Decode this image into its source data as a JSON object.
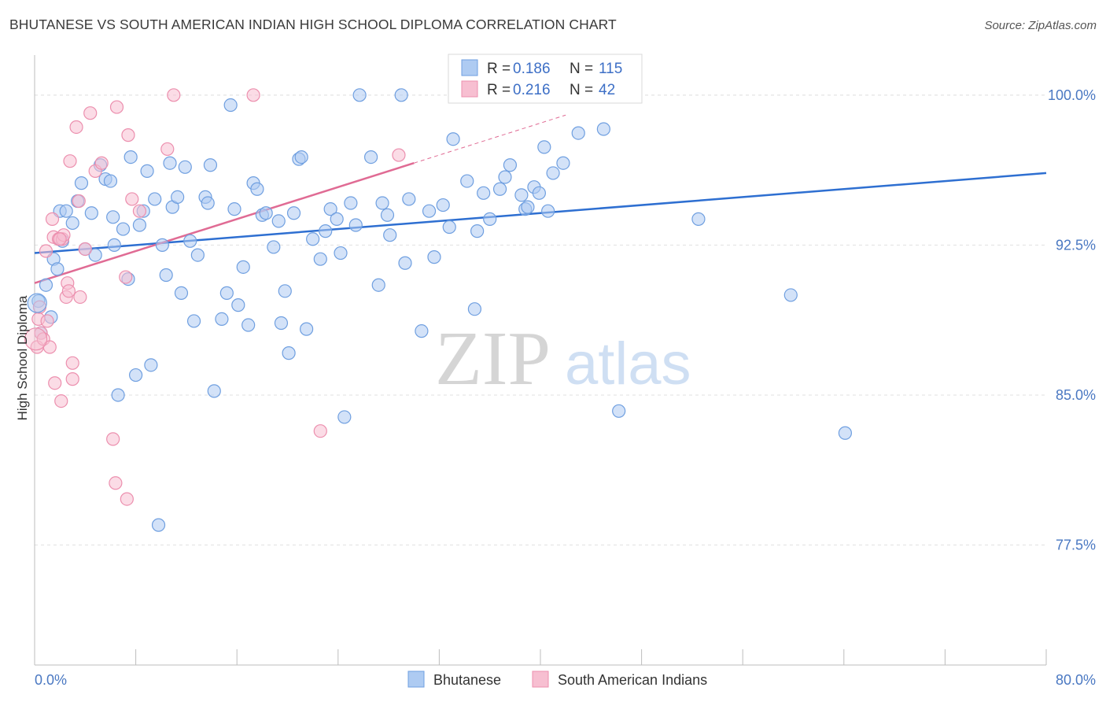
{
  "title": "BHUTANESE VS SOUTH AMERICAN INDIAN HIGH SCHOOL DIPLOMA CORRELATION CHART",
  "source": "Source: ZipAtlas.com",
  "watermark": {
    "zip": "ZIP",
    "atlas": "atlas"
  },
  "colors": {
    "blue": "#6f9fe0",
    "blue_line": "#2e6fd1",
    "blue_fill": "#aecbf2",
    "pink": "#ec8fae",
    "pink_line": "#e06b94",
    "pink_fill": "#f7bfd1",
    "axis_text": "#4a78c2",
    "grid": "#e1e1e1"
  },
  "legend": {
    "rows": [
      {
        "r_label": "R = ",
        "r_value": "0.186",
        "n_label": "N = ",
        "n_value": "115",
        "series": "blue"
      },
      {
        "r_label": "R = ",
        "r_value": "0.216",
        "n_label": "N = ",
        "n_value": "42",
        "series": "pink"
      }
    ]
  },
  "bottom_legend": [
    "Bhutanese",
    "South American Indians"
  ],
  "chart_data": {
    "type": "scatter",
    "title": "BHUTANESE VS SOUTH AMERICAN INDIAN HIGH SCHOOL DIPLOMA CORRELATION CHART",
    "ylabel": "High School Diploma",
    "xlabel": "",
    "xlim": [
      0,
      80
    ],
    "ylim": [
      71.5,
      102
    ],
    "x_tick_labels": [
      "0.0%",
      "80.0%"
    ],
    "y_ticks": [
      77.5,
      85.0,
      92.5,
      100.0
    ],
    "y_tick_labels": [
      "77.5%",
      "85.0%",
      "92.5%",
      "100.0%"
    ],
    "grid": true,
    "legend_position": "top-center",
    "series": [
      {
        "name": "Bhutanese",
        "color": "#6f9fe0",
        "r": 0.186,
        "n": 115,
        "trend": {
          "x": [
            0,
            80
          ],
          "y": [
            92.1,
            96.1
          ]
        },
        "points": [
          [
            0.3,
            89.7
          ],
          [
            0.5,
            88.1
          ],
          [
            0.9,
            90.5
          ],
          [
            1.3,
            88.9
          ],
          [
            1.5,
            91.8
          ],
          [
            1.8,
            91.3
          ],
          [
            2.0,
            94.2
          ],
          [
            2.2,
            92.7
          ],
          [
            2.5,
            94.2
          ],
          [
            3.0,
            93.6
          ],
          [
            3.4,
            94.7
          ],
          [
            3.7,
            95.6
          ],
          [
            4.0,
            92.3
          ],
          [
            4.5,
            94.1
          ],
          [
            4.8,
            92.0
          ],
          [
            5.2,
            96.5
          ],
          [
            5.6,
            95.8
          ],
          [
            6.0,
            95.7
          ],
          [
            6.2,
            93.9
          ],
          [
            6.3,
            92.5
          ],
          [
            6.6,
            85.0
          ],
          [
            7.0,
            93.3
          ],
          [
            7.4,
            90.8
          ],
          [
            7.6,
            96.9
          ],
          [
            8.0,
            86.0
          ],
          [
            8.3,
            93.5
          ],
          [
            8.6,
            94.2
          ],
          [
            8.9,
            96.2
          ],
          [
            9.2,
            86.5
          ],
          [
            9.5,
            94.8
          ],
          [
            9.8,
            78.5
          ],
          [
            10.1,
            92.5
          ],
          [
            10.4,
            91.0
          ],
          [
            10.7,
            96.6
          ],
          [
            10.9,
            94.4
          ],
          [
            11.3,
            94.9
          ],
          [
            11.6,
            90.1
          ],
          [
            11.9,
            96.4
          ],
          [
            12.3,
            92.7
          ],
          [
            12.6,
            88.7
          ],
          [
            12.9,
            92.0
          ],
          [
            13.5,
            94.9
          ],
          [
            13.7,
            94.6
          ],
          [
            13.9,
            96.5
          ],
          [
            14.2,
            85.2
          ],
          [
            14.8,
            88.8
          ],
          [
            15.2,
            90.1
          ],
          [
            15.5,
            99.5
          ],
          [
            15.8,
            94.3
          ],
          [
            16.1,
            89.5
          ],
          [
            16.5,
            91.4
          ],
          [
            16.9,
            88.5
          ],
          [
            17.3,
            95.6
          ],
          [
            17.6,
            95.3
          ],
          [
            18.0,
            94.0
          ],
          [
            18.3,
            94.1
          ],
          [
            18.9,
            92.4
          ],
          [
            19.3,
            93.7
          ],
          [
            19.5,
            88.6
          ],
          [
            19.8,
            90.2
          ],
          [
            20.1,
            87.1
          ],
          [
            20.5,
            94.1
          ],
          [
            20.9,
            96.8
          ],
          [
            21.1,
            96.9
          ],
          [
            21.5,
            88.3
          ],
          [
            22.0,
            92.8
          ],
          [
            22.6,
            91.8
          ],
          [
            23.0,
            93.2
          ],
          [
            23.4,
            94.3
          ],
          [
            23.9,
            93.8
          ],
          [
            24.2,
            92.1
          ],
          [
            24.5,
            83.9
          ],
          [
            25.0,
            94.6
          ],
          [
            25.4,
            93.5
          ],
          [
            26.6,
            96.9
          ],
          [
            27.2,
            90.5
          ],
          [
            27.5,
            94.6
          ],
          [
            27.9,
            94.0
          ],
          [
            28.1,
            93.0
          ],
          [
            29.3,
            91.6
          ],
          [
            29.6,
            94.8
          ],
          [
            30.6,
            88.2
          ],
          [
            31.2,
            94.2
          ],
          [
            31.6,
            91.9
          ],
          [
            32.3,
            94.5
          ],
          [
            32.8,
            93.4
          ],
          [
            33.1,
            97.8
          ],
          [
            34.2,
            95.7
          ],
          [
            34.8,
            89.3
          ],
          [
            35.0,
            93.2
          ],
          [
            35.5,
            95.1
          ],
          [
            36.0,
            93.8
          ],
          [
            36.8,
            95.3
          ],
          [
            37.2,
            95.9
          ],
          [
            37.6,
            96.5
          ],
          [
            38.5,
            95.0
          ],
          [
            38.8,
            94.3
          ],
          [
            39.0,
            94.4
          ],
          [
            39.5,
            95.4
          ],
          [
            39.9,
            95.1
          ],
          [
            40.3,
            97.4
          ],
          [
            40.6,
            94.2
          ],
          [
            41.0,
            96.1
          ],
          [
            41.8,
            96.6
          ],
          [
            43.0,
            98.1
          ],
          [
            45.0,
            98.3
          ],
          [
            45.5,
            100.0
          ],
          [
            46.2,
            84.2
          ],
          [
            52.5,
            93.8
          ],
          [
            59.8,
            90.0
          ],
          [
            64.1,
            83.1
          ],
          [
            25.7,
            100.0
          ],
          [
            29.0,
            100.0
          ],
          [
            43.2,
            100.0
          ],
          [
            46.7,
            100.0
          ]
        ]
      },
      {
        "name": "South American Indians",
        "color": "#ec8fae",
        "r": 0.216,
        "n": 42,
        "trend": {
          "x": [
            0,
            30
          ],
          "y": [
            90.6,
            96.6
          ]
        },
        "trend_dashed": {
          "x": [
            30,
            42
          ],
          "y": [
            96.6,
            99.0
          ]
        },
        "points": [
          [
            0.2,
            87.4
          ],
          [
            0.3,
            88.8
          ],
          [
            0.4,
            89.4
          ],
          [
            0.5,
            88.1
          ],
          [
            0.7,
            87.8
          ],
          [
            0.9,
            92.2
          ],
          [
            1.0,
            88.7
          ],
          [
            1.2,
            87.4
          ],
          [
            1.4,
            93.8
          ],
          [
            1.5,
            92.9
          ],
          [
            1.6,
            85.6
          ],
          [
            1.9,
            92.8
          ],
          [
            2.1,
            84.7
          ],
          [
            2.2,
            92.8
          ],
          [
            2.3,
            93.0
          ],
          [
            2.5,
            89.9
          ],
          [
            2.6,
            90.6
          ],
          [
            2.7,
            90.2
          ],
          [
            2.8,
            96.7
          ],
          [
            3.0,
            86.6
          ],
          [
            3.0,
            85.8
          ],
          [
            3.3,
            98.4
          ],
          [
            3.5,
            94.7
          ],
          [
            3.6,
            89.9
          ],
          [
            4.0,
            92.3
          ],
          [
            4.4,
            99.1
          ],
          [
            4.8,
            96.2
          ],
          [
            5.3,
            96.6
          ],
          [
            6.2,
            82.8
          ],
          [
            6.4,
            80.6
          ],
          [
            6.5,
            99.4
          ],
          [
            7.2,
            90.9
          ],
          [
            7.3,
            79.8
          ],
          [
            7.4,
            98.0
          ],
          [
            7.7,
            94.8
          ],
          [
            8.3,
            94.2
          ],
          [
            10.5,
            97.3
          ],
          [
            11.0,
            100.0
          ],
          [
            17.3,
            100.0
          ],
          [
            22.6,
            83.2
          ],
          [
            28.8,
            97.0
          ],
          [
            2.0,
            92.8
          ]
        ]
      }
    ]
  }
}
